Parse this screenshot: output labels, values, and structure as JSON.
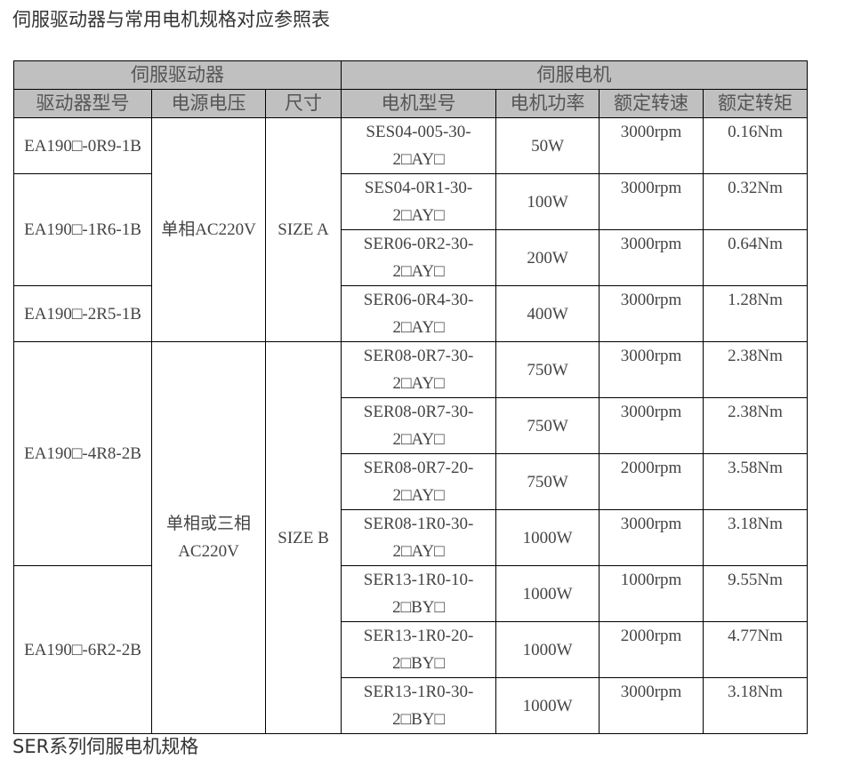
{
  "title": "伺服驱动器与常用电机规格对应参照表",
  "header": {
    "group_driver": "伺服驱动器",
    "group_motor": "伺服电机",
    "columns": [
      "驱动器型号",
      "电源电压",
      "尺寸",
      "电机型号",
      "电机功率",
      "额定转速",
      "额定转矩"
    ]
  },
  "drivers": [
    {
      "model": "EA190□-0R9-1B",
      "rows": 1
    },
    {
      "model": "EA190□-1R6-1B",
      "rows": 2
    },
    {
      "model": "EA190□-2R5-1B",
      "rows": 1
    },
    {
      "model": "EA190□-4R8-2B",
      "rows": 4
    },
    {
      "model": "EA190□-6R2-2B",
      "rows": 3
    }
  ],
  "voltages": [
    {
      "value": "单相AC220V",
      "rows": 4
    },
    {
      "value": "单相或三相AC220V",
      "rows": 7
    }
  ],
  "sizes": [
    {
      "value": "SIZE A",
      "rows": 4
    },
    {
      "value": "SIZE B",
      "rows": 7
    }
  ],
  "motors": [
    {
      "model": "SES04-005-30-2□AY□",
      "power": "50W",
      "speed": "3000rpm",
      "torque": "0.16Nm"
    },
    {
      "model": "SES04-0R1-30-2□AY□",
      "power": "100W",
      "speed": "3000rpm",
      "torque": "0.32Nm"
    },
    {
      "model": "SER06-0R2-30-2□AY□",
      "power": "200W",
      "speed": "3000rpm",
      "torque": "0.64Nm"
    },
    {
      "model": "SER06-0R4-30-2□AY□",
      "power": "400W",
      "speed": "3000rpm",
      "torque": "1.28Nm"
    },
    {
      "model": "SER08-0R7-30-2□AY□",
      "power": "750W",
      "speed": "3000rpm",
      "torque": "2.38Nm"
    },
    {
      "model": "SER08-0R7-30-2□AY□",
      "power": "750W",
      "speed": "3000rpm",
      "torque": "2.38Nm"
    },
    {
      "model": "SER08-0R7-20-2□AY□",
      "power": "750W",
      "speed": "2000rpm",
      "torque": "3.58Nm"
    },
    {
      "model": "SER08-1R0-30-2□AY□",
      "power": "1000W",
      "speed": "3000rpm",
      "torque": "3.18Nm"
    },
    {
      "model": "SER13-1R0-10-2□BY□",
      "power": "1000W",
      "speed": "1000rpm",
      "torque": "9.55Nm"
    },
    {
      "model": "SER13-1R0-20-2□BY□",
      "power": "1000W",
      "speed": "2000rpm",
      "torque": "4.77Nm"
    },
    {
      "model": "SER13-1R0-30-2□BY□",
      "power": "1000W",
      "speed": "3000rpm",
      "torque": "3.18Nm"
    }
  ],
  "footer_heading": "SER系列伺服电机规格"
}
